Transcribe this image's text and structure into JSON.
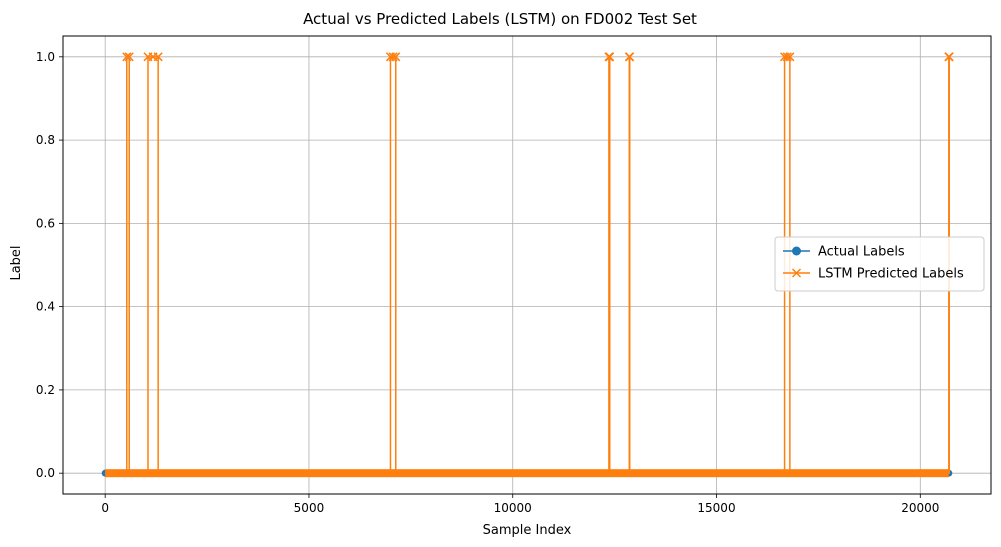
{
  "chart_data": {
    "type": "line",
    "title": "Actual vs Predicted Labels (LSTM) on FD002 Test Set",
    "xlabel": "Sample Index",
    "ylabel": "Label",
    "xlim": [
      -1035,
      21735
    ],
    "ylim": [
      -0.05,
      1.05
    ],
    "x_ticks": [
      0,
      5000,
      10000,
      15000,
      20000
    ],
    "x_tick_labels": [
      "0",
      "5000",
      "10000",
      "15000",
      "20000"
    ],
    "y_ticks": [
      0.0,
      0.2,
      0.4,
      0.6,
      0.8,
      1.0
    ],
    "y_tick_labels": [
      "0.0",
      "0.2",
      "0.4",
      "0.6",
      "0.8",
      "1.0"
    ],
    "grid": true,
    "legend_position": "center-right",
    "series": [
      {
        "name": "Actual Labels",
        "color": "#1f77b4",
        "marker": "circle",
        "x": [
          0,
          1150,
          20700
        ],
        "y": [
          0,
          0,
          0
        ],
        "segment_x": [
          0,
          20700
        ],
        "segment_y": [
          0,
          0
        ]
      },
      {
        "name": "LSTM Predicted Labels",
        "color": "#ff7f0e",
        "marker": "x",
        "spikes": [
          {
            "start": 530,
            "end": 590
          },
          {
            "start": 1050,
            "end": 1300
          },
          {
            "start": 7000,
            "end": 7130
          },
          {
            "start": 12360,
            "end": 12380
          },
          {
            "start": 12860,
            "end": 12870
          },
          {
            "start": 16670,
            "end": 16800
          },
          {
            "start": 20700,
            "end": 20710
          }
        ],
        "x_range": [
          0,
          20700
        ],
        "baseline": 0,
        "peak": 1
      }
    ]
  }
}
